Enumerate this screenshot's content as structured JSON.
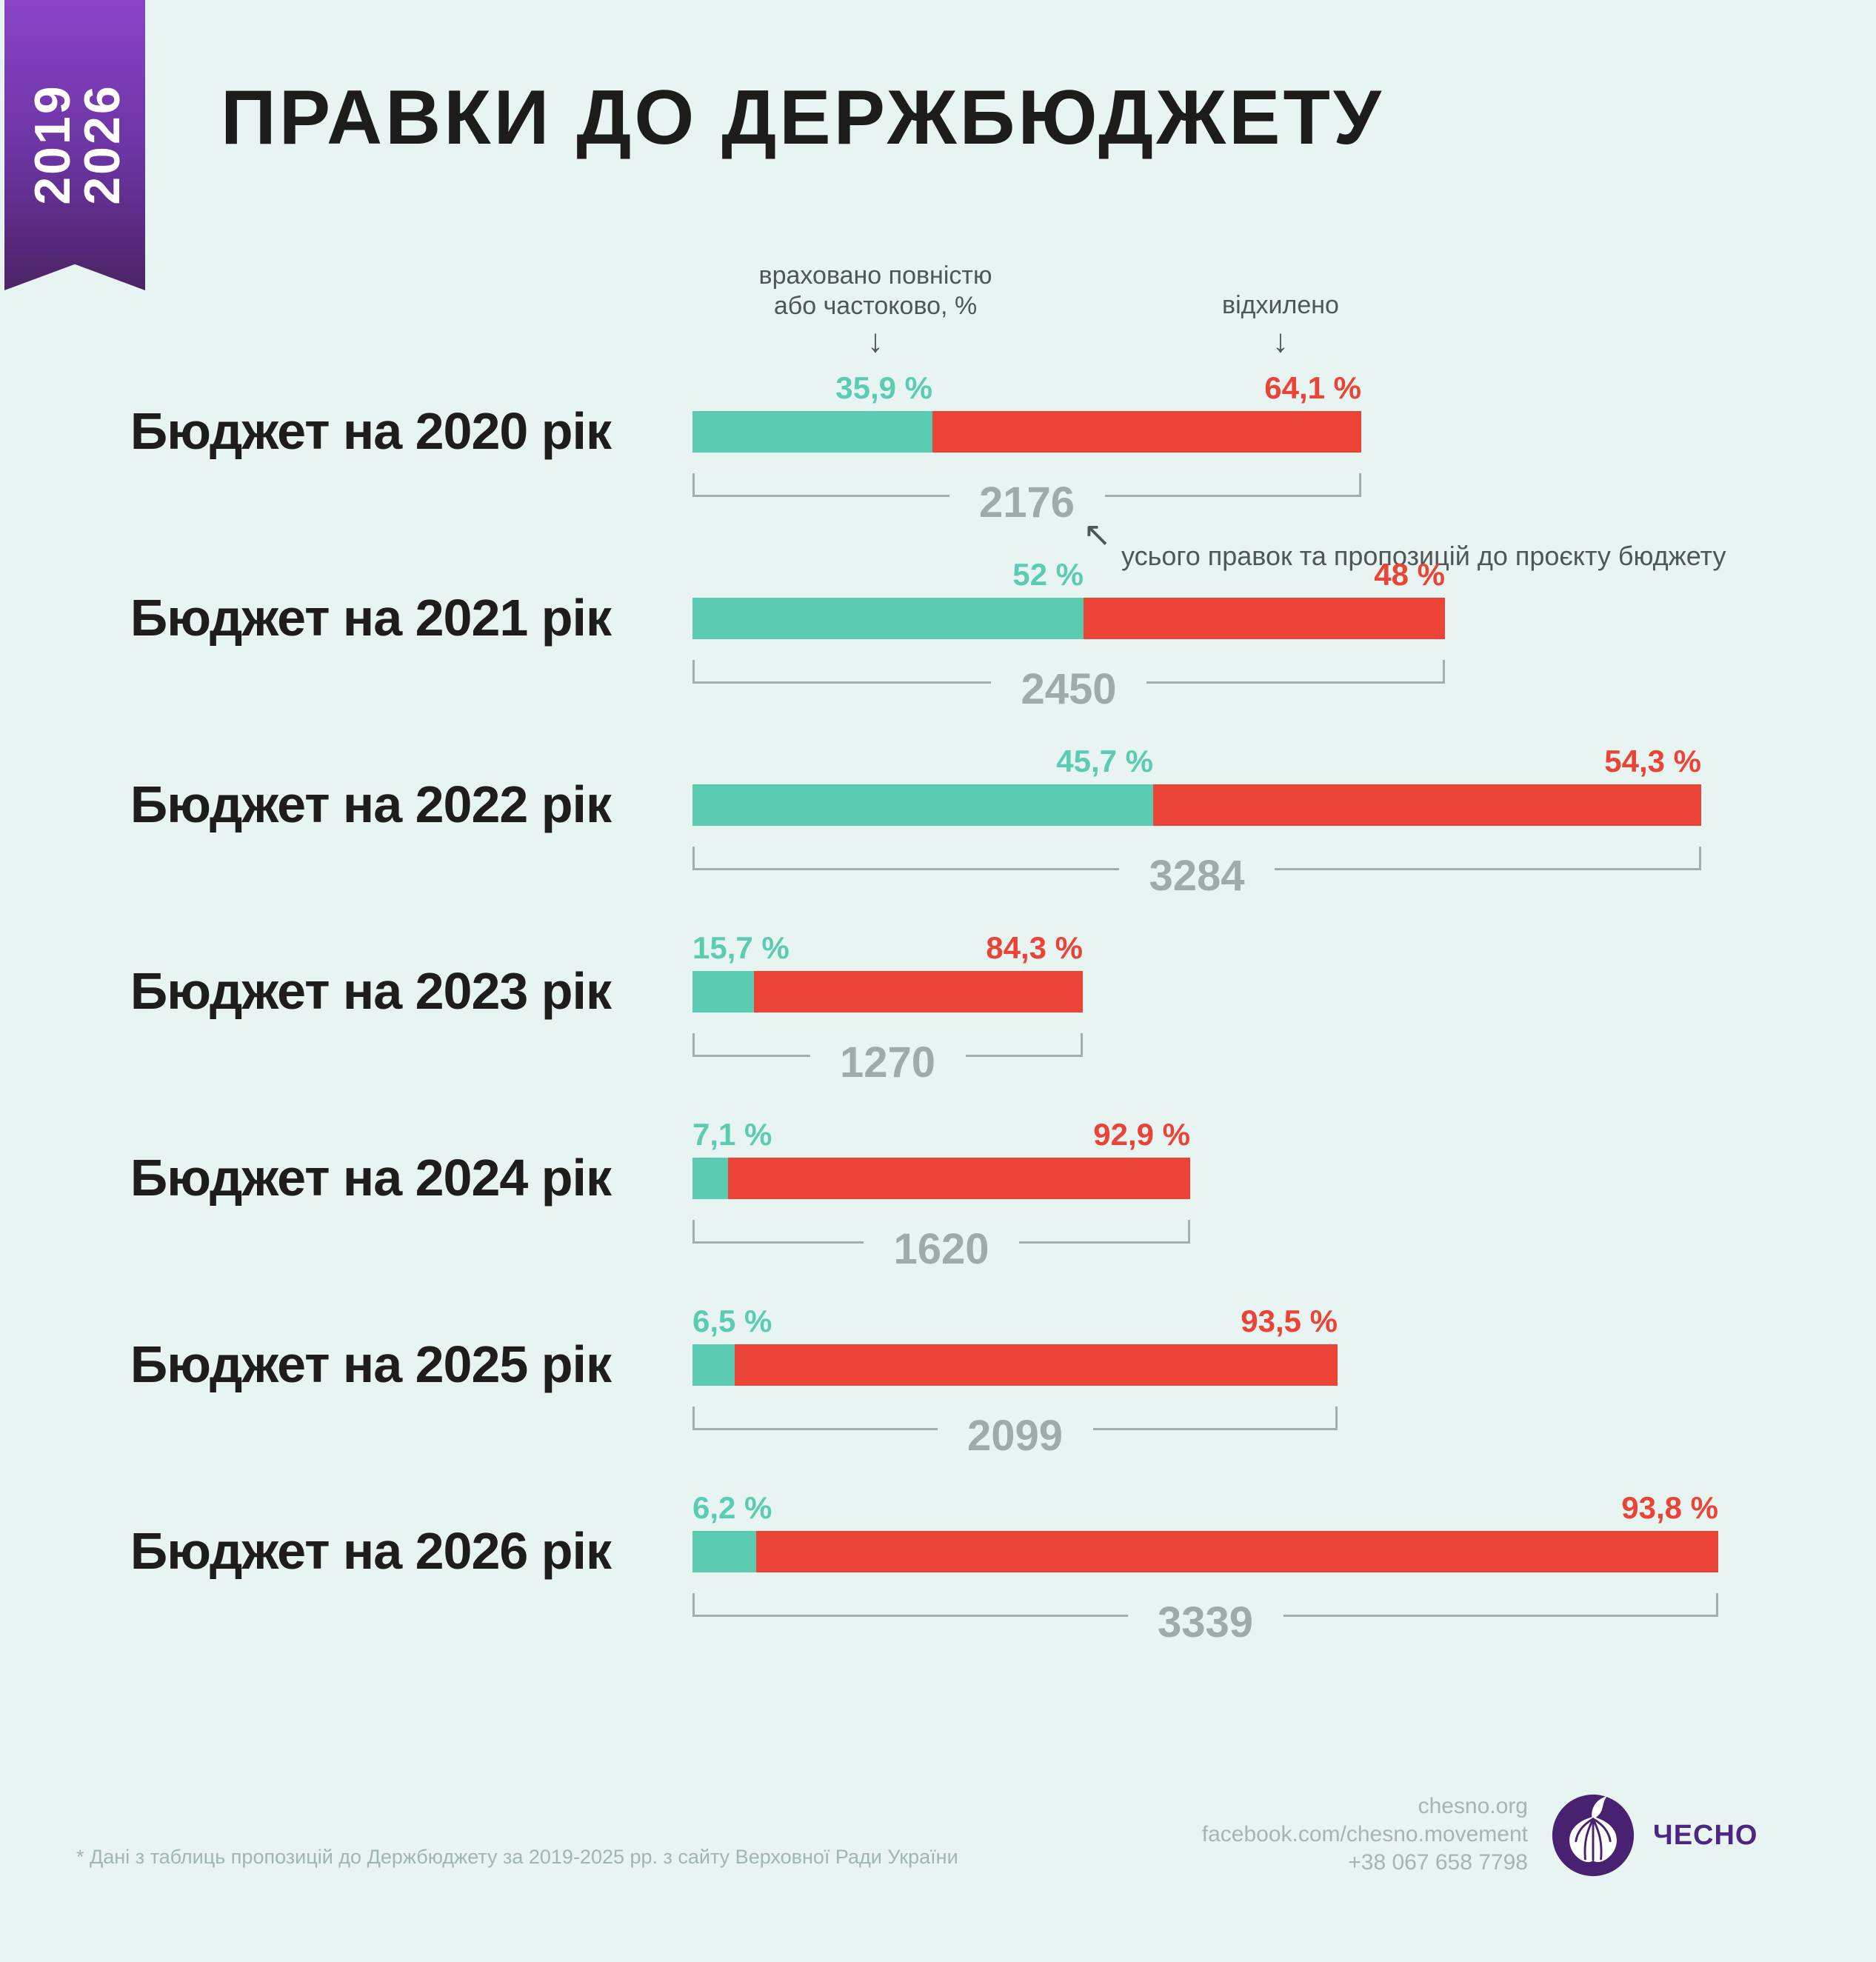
{
  "ribbon": {
    "year_start": "2019",
    "year_end": "2026"
  },
  "title": "ПРАВКИ ДО ДЕРЖБЮДЖЕТУ",
  "annotations": {
    "accepted_line1": "враховано повністю",
    "accepted_line2": "або частоково, %",
    "rejected": "відхилено",
    "down_arrow": "↓",
    "total_pointer_arrow": "↖",
    "total_note": "усього правок та пропозицій до проєкту бюджету"
  },
  "chart_data": {
    "type": "bar",
    "orientation": "horizontal",
    "stacked": true,
    "bar_length_proportional_to_total": true,
    "categories": [
      "Бюджет на 2020 рік",
      "Бюджет на 2021 рік",
      "Бюджет на 2022 рік",
      "Бюджет на 2023 рік",
      "Бюджет на 2024 рік",
      "Бюджет на 2025 рік",
      "Бюджет на 2026 рік"
    ],
    "totals": [
      2176,
      2450,
      3284,
      1270,
      1620,
      2099,
      3339
    ],
    "series": [
      {
        "name": "враховано повністю або частоково",
        "color": "#5bccb2",
        "values_percent": [
          35.9,
          52,
          45.7,
          15.7,
          7.1,
          6.5,
          6.2
        ],
        "labels": [
          "35,9 %",
          "52 %",
          "45,7 %",
          "15,7 %",
          "7,1 %",
          "6,5 %",
          "6,2 %"
        ]
      },
      {
        "name": "відхилено",
        "color": "#eb4336",
        "values_percent": [
          64.1,
          48,
          54.3,
          84.3,
          92.9,
          93.5,
          93.8
        ],
        "labels": [
          "64,1 %",
          "48 %",
          "54,3 %",
          "84,3 %",
          "92,9 %",
          "93,5 %",
          "93,8 %"
        ]
      }
    ]
  },
  "footer": {
    "footnote": "* Дані з таблиць пропозицій до Держбюджету за 2019-2025 рр. з сайту Верховної Ради України",
    "website": "chesno.org",
    "facebook": "facebook.com/chesno.movement",
    "phone": "+38 067 658 7798",
    "logo_text": "ЧЕСНО"
  },
  "colors": {
    "background": "#e7f4f2",
    "accepted_green": "#5bccb2",
    "rejected_red": "#eb4336",
    "total_gray": "#a0aaa8",
    "annotation_gray": "#4d5856",
    "footer_gray": "#a7b4b1",
    "ribbon_purple_top": "#8a43c7",
    "ribbon_purple_bottom": "#4b2465",
    "logo_purple": "#482170",
    "text_black": "#1d1e1c"
  }
}
